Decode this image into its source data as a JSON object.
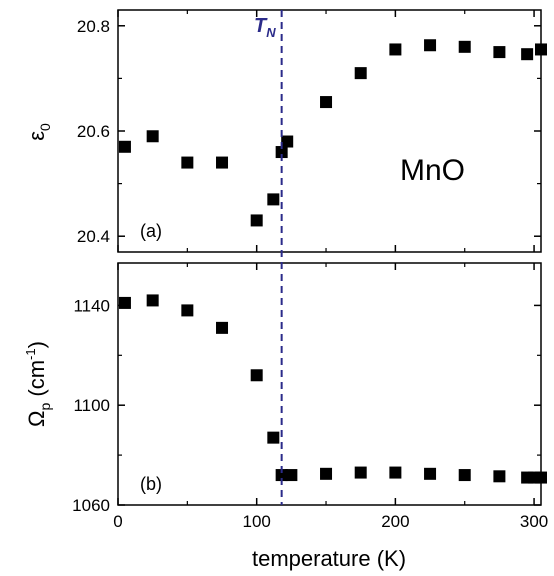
{
  "chart_data": [
    {
      "type": "scatter",
      "panel_label": "(a)",
      "annotation": "MnO",
      "ylabel_main": "ε",
      "ylabel_sub": "0",
      "xlim": [
        0,
        305
      ],
      "ylim": [
        20.37,
        20.83
      ],
      "yticks": [
        "20.4",
        "20.6",
        "20.8"
      ],
      "ytick_values": [
        20.4,
        20.6,
        20.8
      ],
      "x": [
        5,
        25,
        50,
        75,
        100,
        112,
        118,
        122,
        150,
        175,
        200,
        225,
        250,
        275,
        295,
        305
      ],
      "y": [
        20.57,
        20.59,
        20.54,
        20.54,
        20.43,
        20.47,
        20.56,
        20.58,
        20.655,
        20.71,
        20.755,
        20.763,
        20.76,
        20.75,
        20.746,
        20.755
      ]
    },
    {
      "type": "scatter",
      "panel_label": "(b)",
      "ylabel_main": "Ω",
      "ylabel_sub": "p",
      "ylabel_rest": " (cm",
      "ylabel_sup": "-1",
      "ylabel_end": ")",
      "xlim": [
        0,
        305
      ],
      "ylim": [
        1060,
        1157
      ],
      "yticks": [
        "1060",
        "1100",
        "1140"
      ],
      "ytick_values": [
        1060,
        1100,
        1140
      ],
      "xticks": [
        "0",
        "100",
        "200",
        "300"
      ],
      "xtick_values": [
        0,
        100,
        200,
        300
      ],
      "xlabel": "temperature (K)",
      "x": [
        5,
        25,
        50,
        75,
        100,
        112,
        118,
        125,
        150,
        175,
        200,
        225,
        250,
        275,
        295,
        300,
        305
      ],
      "y": [
        1141,
        1142,
        1138,
        1131,
        1112,
        1087,
        1072,
        1072,
        1072.5,
        1073,
        1073,
        1072.5,
        1072,
        1071.5,
        1071,
        1071,
        1071
      ]
    }
  ],
  "transition": {
    "label_main": "T",
    "label_sub": "N",
    "x": 118,
    "color": "#2b2b8a"
  },
  "colors": {
    "marker": "#000000",
    "axis": "#000000"
  }
}
